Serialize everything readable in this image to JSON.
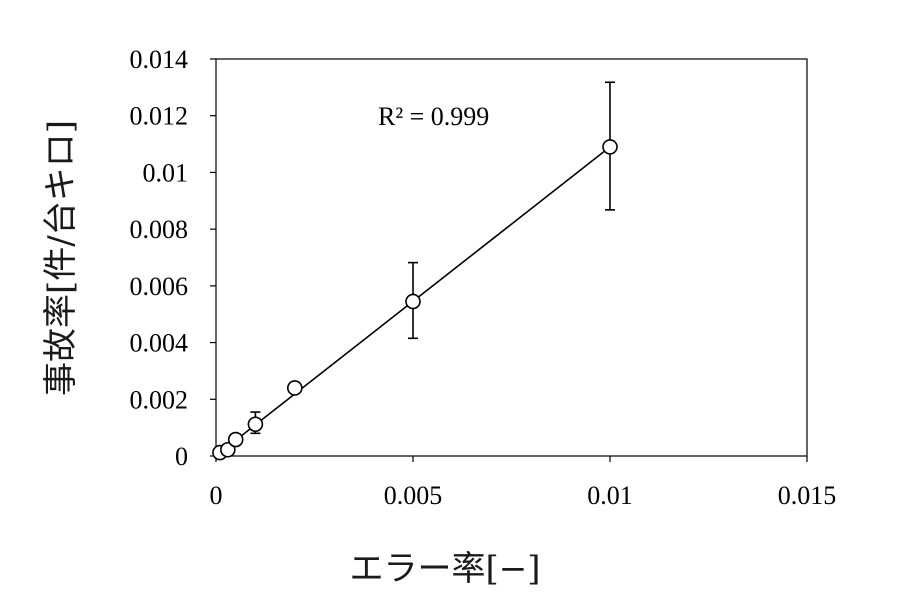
{
  "chart_data": {
    "type": "scatter",
    "title": "",
    "xlabel": "エラー率[−]",
    "ylabel": "事故率[件/台キロ]",
    "xlim": [
      0,
      0.015
    ],
    "ylim": [
      0,
      0.014
    ],
    "x_ticks": [
      0,
      0.005,
      0.01,
      0.015
    ],
    "x_tick_labels": [
      "0",
      "0.005",
      "0.01",
      "0.015"
    ],
    "y_ticks": [
      0,
      0.002,
      0.004,
      0.006,
      0.008,
      0.01,
      0.012,
      0.014
    ],
    "y_tick_labels": [
      "0",
      "0.002",
      "0.004",
      "0.006",
      "0.008",
      "0.01",
      "0.012",
      "0.014"
    ],
    "grid": false,
    "legend": "none",
    "marker": "open-circle",
    "points": [
      {
        "x": 0.0001,
        "y": 0.00012,
        "err_low": 0.00012,
        "err_high": 0.00012
      },
      {
        "x": 0.0003,
        "y": 0.00022,
        "err_low": 0.00022,
        "err_high": 0.00022
      },
      {
        "x": 0.0005,
        "y": 0.00058,
        "err_low": 0.00058,
        "err_high": 0.00058
      },
      {
        "x": 0.001,
        "y": 0.00112,
        "err_low": 0.0008,
        "err_high": 0.00155
      },
      {
        "x": 0.002,
        "y": 0.0024,
        "err_low": 0.0024,
        "err_high": 0.0024
      },
      {
        "x": 0.005,
        "y": 0.00545,
        "err_low": 0.00415,
        "err_high": 0.00682
      },
      {
        "x": 0.01,
        "y": 0.0109,
        "err_low": 0.00868,
        "err_high": 0.01318
      }
    ],
    "trendline": {
      "type": "linear",
      "x": [
        0.0001,
        0.01
      ],
      "y": [
        0.00012,
        0.0109
      ]
    },
    "annotation": "R² = 0.999"
  },
  "colors": {
    "marks": "#000000",
    "axis": "#000000",
    "background": "#ffffff"
  }
}
